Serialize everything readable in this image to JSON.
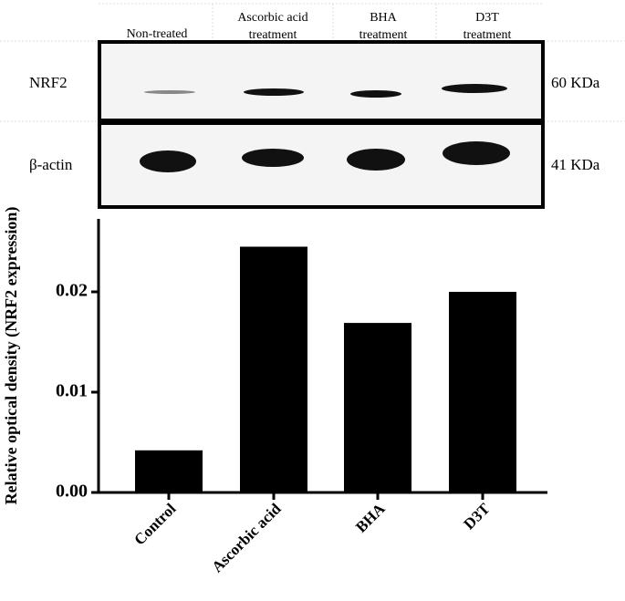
{
  "blot": {
    "columns": [
      [
        "Non-treated"
      ],
      [
        "Ascorbic acid",
        "treatment"
      ],
      [
        "BHA",
        "treatment"
      ],
      [
        "D3T",
        "treatment"
      ]
    ],
    "rows": [
      {
        "label": "NRF2",
        "size": "60 KDa"
      },
      {
        "label": "β-actin",
        "size": "41 KDa"
      }
    ]
  },
  "chart_data": {
    "type": "bar",
    "y_label": "Relative optical density (NRF2 expression)",
    "categories": [
      "Control",
      "Ascorbic acid",
      "BHA",
      "D3T"
    ],
    "values": [
      0.0042,
      0.0245,
      0.0169,
      0.02
    ],
    "color": "#000000",
    "ylim": [
      0,
      0.027
    ],
    "yticks": [
      {
        "value": 0,
        "label": "0.00"
      },
      0.01,
      0.02
    ],
    "grid": false
  }
}
